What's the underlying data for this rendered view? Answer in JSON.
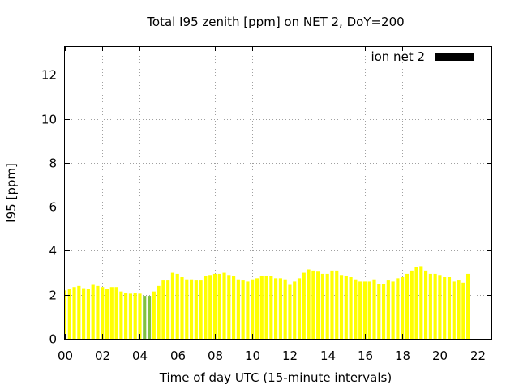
{
  "chart_data": {
    "type": "bar",
    "title": "Total I95 zenith [ppm] on NET 2, DoY=200",
    "xlabel": "Time of day UTC (15-minute intervals)",
    "ylabel": "I95 [ppm]",
    "xlim": [
      0,
      22.75
    ],
    "ylim": [
      0,
      13.3
    ],
    "x_ticks": [
      "00",
      "02",
      "04",
      "06",
      "08",
      "10",
      "12",
      "14",
      "16",
      "18",
      "20",
      "22"
    ],
    "y_ticks": [
      "0",
      "2",
      "4",
      "6",
      "8",
      "10",
      "12"
    ],
    "grid": true,
    "legend": {
      "placement": "top-right",
      "entries": [
        {
          "label": "ion net 2",
          "color": "#000000"
        }
      ]
    },
    "colors": {
      "bar_default": "#ffff00",
      "bar_highlight": "#80c040"
    },
    "highlight_indices": [
      17,
      18
    ],
    "bar_interval_hours": 0.25,
    "values": [
      2.2,
      2.25,
      2.35,
      2.4,
      2.3,
      2.25,
      2.45,
      2.4,
      2.35,
      2.25,
      2.35,
      2.35,
      2.15,
      2.1,
      2.05,
      2.1,
      2.05,
      1.95,
      1.95,
      2.15,
      2.4,
      2.65,
      2.65,
      3.0,
      2.95,
      2.8,
      2.7,
      2.7,
      2.65,
      2.65,
      2.85,
      2.9,
      2.95,
      2.95,
      3.0,
      2.9,
      2.85,
      2.7,
      2.65,
      2.6,
      2.7,
      2.75,
      2.85,
      2.85,
      2.85,
      2.75,
      2.75,
      2.7,
      2.45,
      2.6,
      2.75,
      3.0,
      3.15,
      3.1,
      3.05,
      2.95,
      2.95,
      3.1,
      3.1,
      2.9,
      2.85,
      2.8,
      2.7,
      2.6,
      2.6,
      2.6,
      2.7,
      2.5,
      2.5,
      2.65,
      2.6,
      2.75,
      2.8,
      2.95,
      3.1,
      3.25,
      3.3,
      3.1,
      2.95,
      2.95,
      2.9,
      2.8,
      2.8,
      2.6,
      2.65,
      2.55,
      2.95
    ]
  }
}
